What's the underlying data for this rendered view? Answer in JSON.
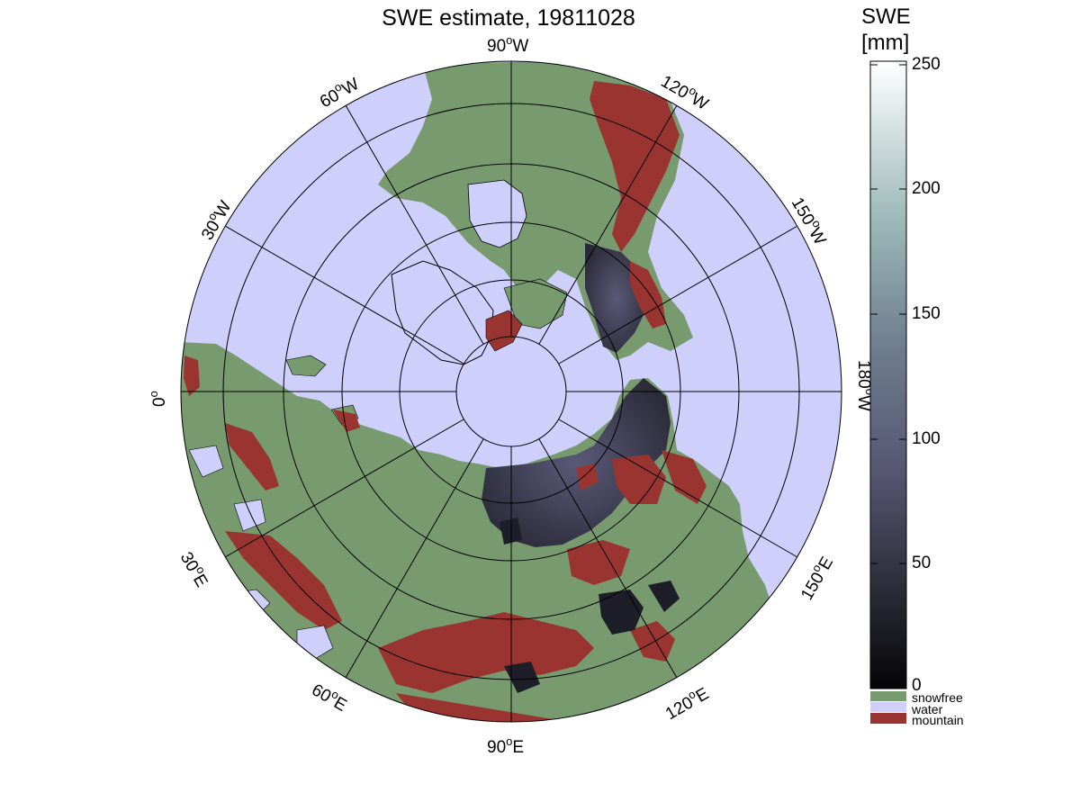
{
  "title": "SWE estimate, 19811028",
  "colorbar": {
    "title_line1": "SWE",
    "title_line2": "[mm]",
    "ticks": [
      "250",
      "200",
      "150",
      "100",
      "50",
      "0"
    ],
    "range_mm": [
      0,
      250
    ],
    "categories": [
      {
        "label": "snowfree",
        "color": "#779a6f"
      },
      {
        "label": "water",
        "color": "#cfcffb"
      },
      {
        "label": "mountain",
        "color": "#9a3431"
      }
    ]
  },
  "map": {
    "projection": "north polar stereographic",
    "colors": {
      "water": "#cfcffb",
      "snowfree": "#779a6f",
      "mountain": "#9a3431",
      "snow_low": "#1b1b24",
      "snow_mid": "#4a4a66",
      "coast": "#000000",
      "grid": "#000000"
    },
    "longitude_labels": {
      "lon_90w": "90",
      "lon_90w_suffix": "W",
      "lon_60w": "60",
      "lon_60w_suffix": "W",
      "lon_30w": "30",
      "lon_30w_suffix": "W",
      "lon_0": "0",
      "lon_0_suffix": "",
      "lon_30e": "30",
      "lon_30e_suffix": "E",
      "lon_60e": "60",
      "lon_60e_suffix": "E",
      "lon_90e": "90",
      "lon_90e_suffix": "E",
      "lon_120e": "120",
      "lon_120e_suffix": "E",
      "lon_150e": "150",
      "lon_150e_suffix": "E",
      "lon_180w": "180",
      "lon_180w_suffix": "W",
      "lon_150w": "150",
      "lon_150w_suffix": "W",
      "lon_120w": "120",
      "lon_120w_suffix": "W"
    }
  }
}
